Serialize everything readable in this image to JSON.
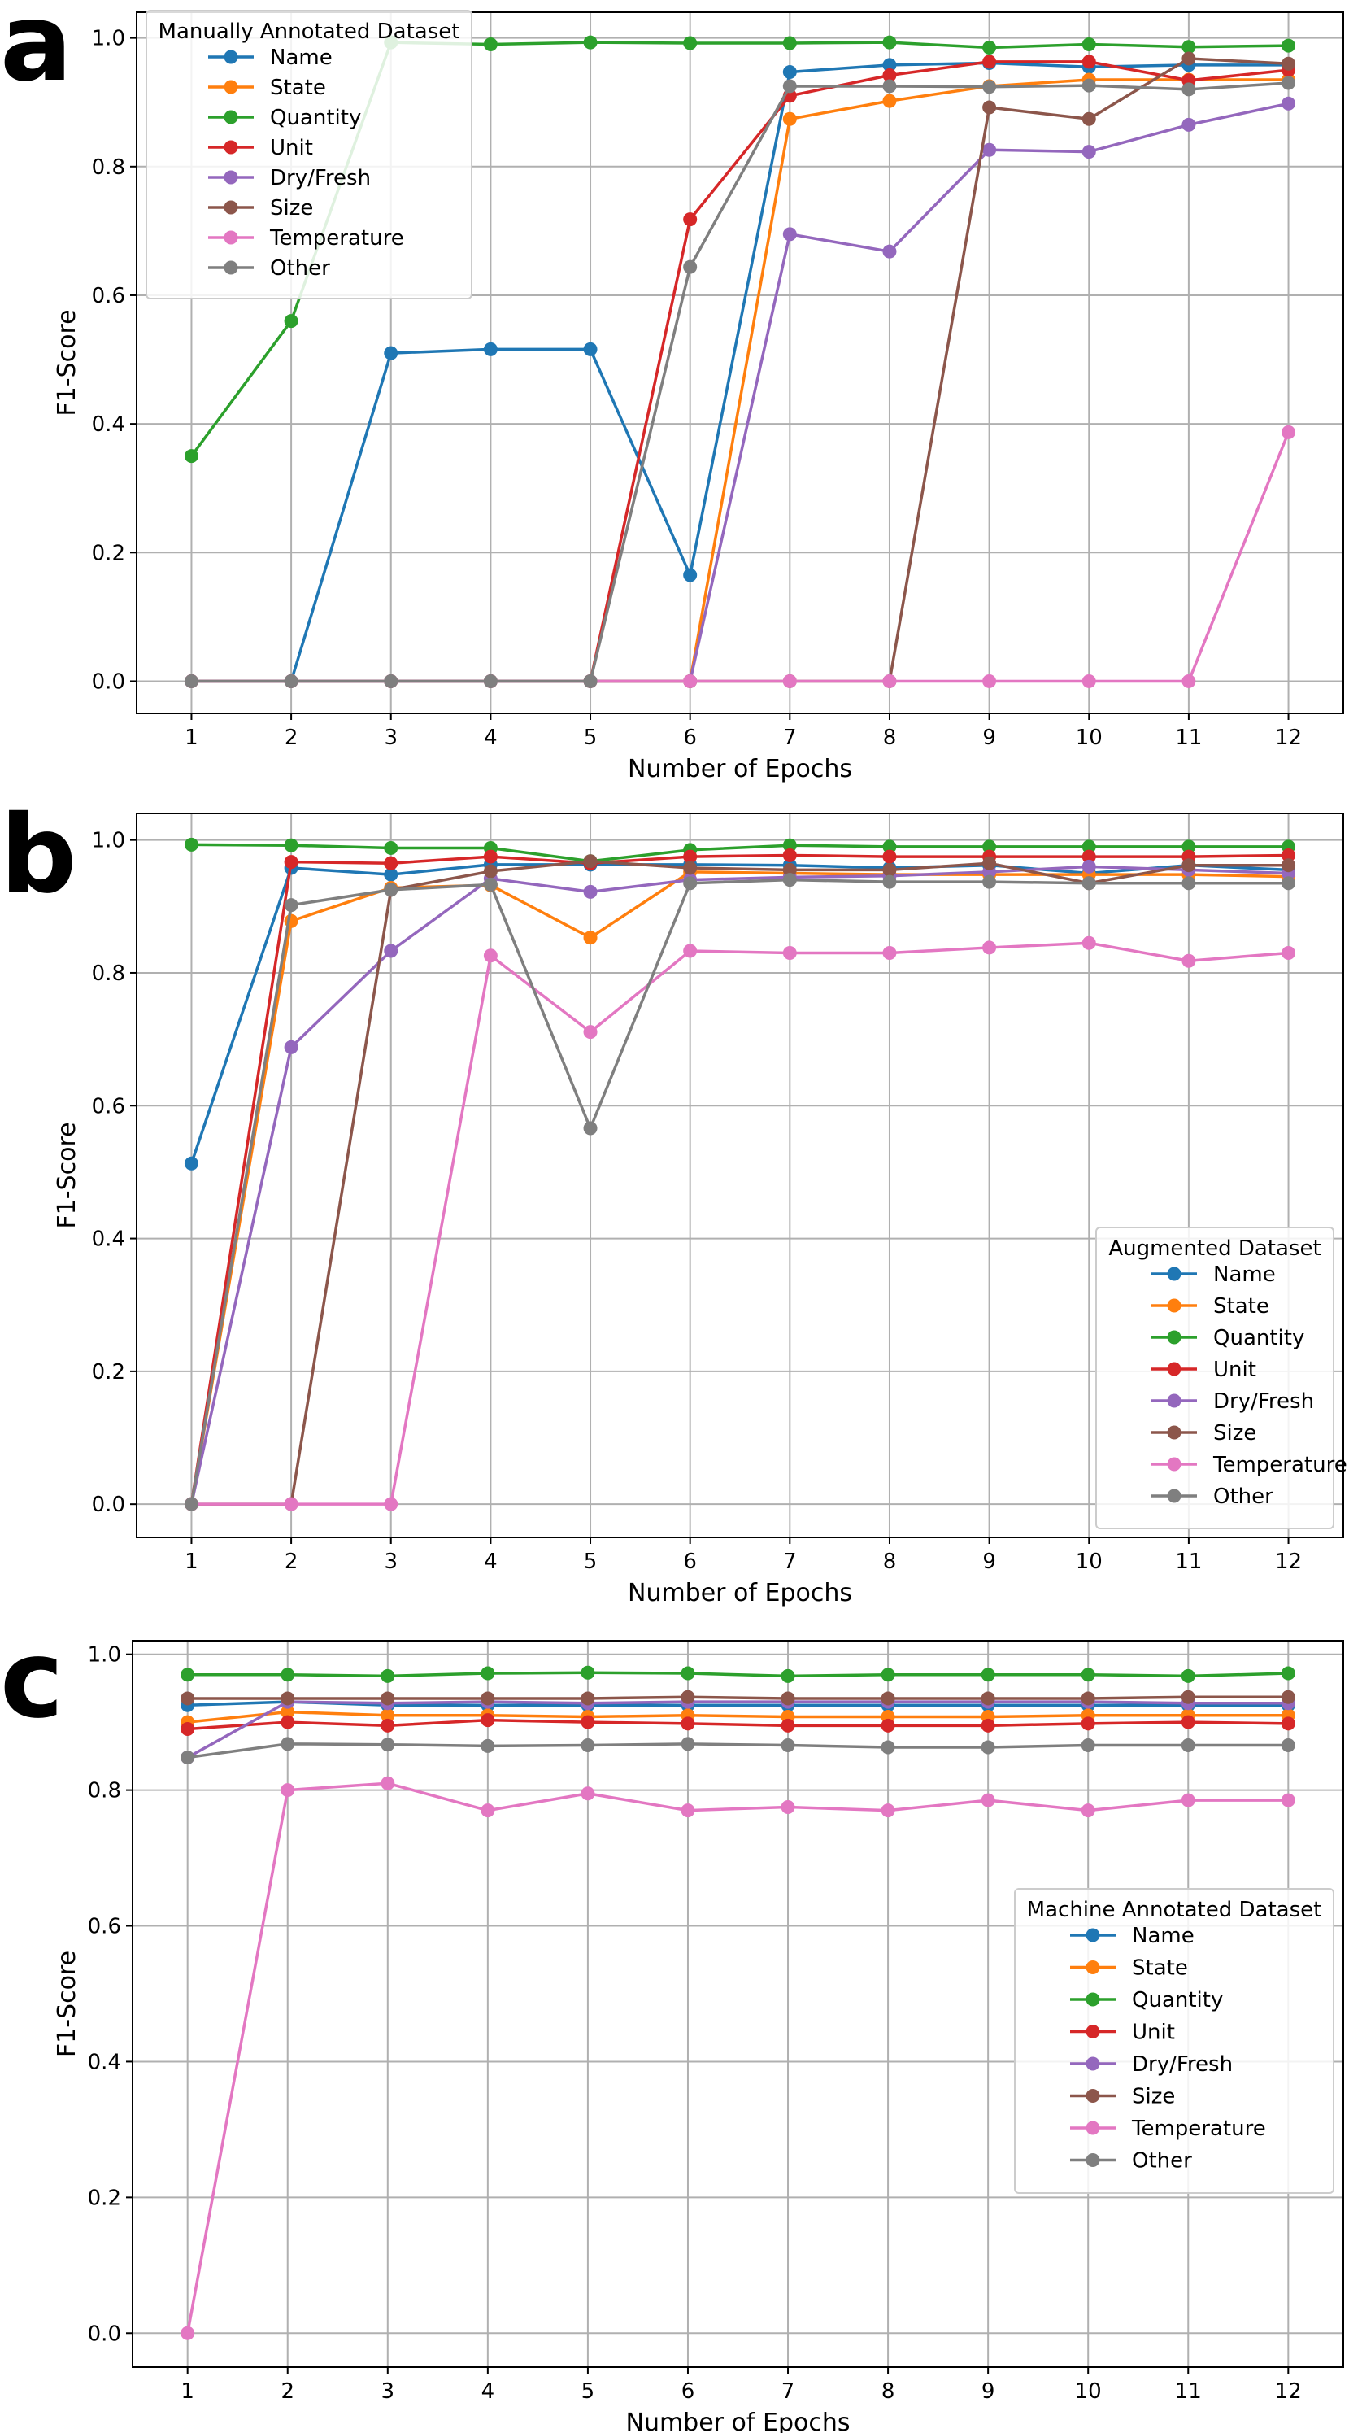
{
  "chart_data": [
    {
      "type": "line",
      "panel_label": "a",
      "xlabel": "Number of Epochs",
      "ylabel": "F1-Score",
      "x": [
        1,
        2,
        3,
        4,
        5,
        6,
        7,
        8,
        9,
        10,
        11,
        12
      ],
      "xlim": [
        0.45,
        12.55
      ],
      "ylim": [
        -0.05,
        1.04
      ],
      "yticks": [
        0.0,
        0.2,
        0.4,
        0.6,
        0.8,
        1.0
      ],
      "ytick_labels": [
        "0.0",
        "0.2",
        "0.4",
        "0.6",
        "0.8",
        "1.0"
      ],
      "grid": true,
      "legend_title": "Manually Annotated Dataset",
      "legend_placement": "upper left",
      "series": [
        {
          "name": "Name",
          "color": "#1f77b4",
          "values": [
            0.0,
            0.0,
            0.51,
            0.516,
            0.516,
            0.165,
            0.947,
            0.958,
            0.961,
            0.955,
            0.958,
            0.958
          ]
        },
        {
          "name": "State",
          "color": "#ff7f0e",
          "values": [
            0.0,
            0.0,
            0.0,
            0.0,
            0.0,
            0.0,
            0.874,
            0.902,
            0.925,
            0.935,
            0.935,
            0.935
          ]
        },
        {
          "name": "Quantity",
          "color": "#2ca02c",
          "values": [
            0.35,
            0.56,
            0.993,
            0.99,
            0.993,
            0.992,
            0.992,
            0.993,
            0.985,
            0.99,
            0.986,
            0.988
          ]
        },
        {
          "name": "Unit",
          "color": "#d62728",
          "values": [
            0.0,
            0.0,
            0.0,
            0.0,
            0.0,
            0.718,
            0.91,
            0.942,
            0.963,
            0.963,
            0.934,
            0.95
          ]
        },
        {
          "name": "Dry/Fresh",
          "color": "#9467bd",
          "values": [
            0.0,
            0.0,
            0.0,
            0.0,
            0.0,
            0.0,
            0.695,
            0.668,
            0.826,
            0.823,
            0.865,
            0.898
          ]
        },
        {
          "name": "Size",
          "color": "#8c564b",
          "values": [
            0.0,
            0.0,
            0.0,
            0.0,
            0.0,
            0.0,
            0.0,
            0.0,
            0.892,
            0.874,
            0.968,
            0.96
          ]
        },
        {
          "name": "Temperature",
          "color": "#e377c2",
          "values": [
            0.0,
            0.0,
            0.0,
            0.0,
            0.0,
            0.0,
            0.0,
            0.0,
            0.0,
            0.0,
            0.0,
            0.387
          ]
        },
        {
          "name": "Other",
          "color": "#7f7f7f",
          "values": [
            0.0,
            0.0,
            0.0,
            0.0,
            0.0,
            0.644,
            0.925,
            0.925,
            0.924,
            0.926,
            0.92,
            0.93
          ]
        }
      ]
    },
    {
      "type": "line",
      "panel_label": "b",
      "xlabel": "Number of Epochs",
      "ylabel": "F1-Score",
      "x": [
        1,
        2,
        3,
        4,
        5,
        6,
        7,
        8,
        9,
        10,
        11,
        12
      ],
      "xlim": [
        0.45,
        12.55
      ],
      "ylim": [
        -0.05,
        1.04
      ],
      "yticks": [
        0.0,
        0.2,
        0.4,
        0.6,
        0.8,
        1.0
      ],
      "ytick_labels": [
        "0.0",
        "0.2",
        "0.4",
        "0.6",
        "0.8",
        "1.0"
      ],
      "grid": true,
      "legend_title": "Augmented Dataset",
      "legend_placement": "lower right",
      "series": [
        {
          "name": "Name",
          "color": "#1f77b4",
          "values": [
            0.513,
            0.958,
            0.948,
            0.963,
            0.963,
            0.963,
            0.962,
            0.958,
            0.962,
            0.95,
            0.962,
            0.955
          ]
        },
        {
          "name": "State",
          "color": "#ff7f0e",
          "values": [
            0.0,
            0.878,
            0.928,
            0.932,
            0.853,
            0.952,
            0.95,
            0.948,
            0.948,
            0.948,
            0.948,
            0.945
          ]
        },
        {
          "name": "Quantity",
          "color": "#2ca02c",
          "values": [
            0.993,
            0.992,
            0.988,
            0.988,
            0.968,
            0.985,
            0.992,
            0.99,
            0.99,
            0.99,
            0.99,
            0.99
          ]
        },
        {
          "name": "Unit",
          "color": "#d62728",
          "values": [
            0.0,
            0.967,
            0.965,
            0.975,
            0.965,
            0.975,
            0.977,
            0.975,
            0.975,
            0.975,
            0.975,
            0.977
          ]
        },
        {
          "name": "Dry/Fresh",
          "color": "#9467bd",
          "values": [
            0.0,
            0.688,
            0.833,
            0.942,
            0.922,
            0.94,
            0.944,
            0.946,
            0.952,
            0.96,
            0.955,
            0.95
          ]
        },
        {
          "name": "Size",
          "color": "#8c564b",
          "values": [
            0.0,
            0.0,
            0.925,
            0.953,
            0.968,
            0.958,
            0.955,
            0.955,
            0.965,
            0.935,
            0.962,
            0.962
          ]
        },
        {
          "name": "Temperature",
          "color": "#e377c2",
          "values": [
            0.0,
            0.0,
            0.0,
            0.826,
            0.711,
            0.833,
            0.83,
            0.83,
            0.838,
            0.845,
            0.818,
            0.83
          ]
        },
        {
          "name": "Other",
          "color": "#7f7f7f",
          "values": [
            0.0,
            0.902,
            0.925,
            0.933,
            0.566,
            0.935,
            0.94,
            0.937,
            0.937,
            0.935,
            0.935,
            0.935
          ]
        }
      ]
    },
    {
      "type": "line",
      "panel_label": "c",
      "xlabel": "Number of Epochs",
      "ylabel": "F1-Score",
      "x": [
        1,
        2,
        3,
        4,
        5,
        6,
        7,
        8,
        9,
        10,
        11,
        12
      ],
      "xlim": [
        0.45,
        12.55
      ],
      "ylim": [
        -0.05,
        1.02
      ],
      "yticks": [
        0.0,
        0.2,
        0.4,
        0.6,
        0.8,
        1.0
      ],
      "ytick_labels": [
        "0.0",
        "0.2",
        "0.4",
        "0.6",
        "0.8",
        "1.0"
      ],
      "grid": true,
      "legend_title": "Machine Annotated Dataset",
      "legend_placement": "lower right",
      "series": [
        {
          "name": "Name",
          "color": "#1f77b4",
          "values": [
            0.925,
            0.93,
            0.925,
            0.925,
            0.925,
            0.925,
            0.925,
            0.925,
            0.925,
            0.925,
            0.925,
            0.925
          ]
        },
        {
          "name": "State",
          "color": "#ff7f0e",
          "values": [
            0.9,
            0.915,
            0.91,
            0.91,
            0.908,
            0.91,
            0.908,
            0.908,
            0.908,
            0.91,
            0.91,
            0.91
          ]
        },
        {
          "name": "Quantity",
          "color": "#2ca02c",
          "values": [
            0.97,
            0.97,
            0.968,
            0.972,
            0.973,
            0.972,
            0.968,
            0.97,
            0.97,
            0.97,
            0.968,
            0.972
          ]
        },
        {
          "name": "Unit",
          "color": "#d62728",
          "values": [
            0.89,
            0.9,
            0.895,
            0.903,
            0.9,
            0.898,
            0.895,
            0.895,
            0.895,
            0.898,
            0.9,
            0.898
          ]
        },
        {
          "name": "Dry/Fresh",
          "color": "#9467bd",
          "values": [
            0.848,
            0.93,
            0.928,
            0.93,
            0.928,
            0.93,
            0.93,
            0.93,
            0.93,
            0.93,
            0.928,
            0.928
          ]
        },
        {
          "name": "Size",
          "color": "#8c564b",
          "values": [
            0.935,
            0.935,
            0.935,
            0.935,
            0.935,
            0.937,
            0.935,
            0.935,
            0.935,
            0.935,
            0.937,
            0.937
          ]
        },
        {
          "name": "Temperature",
          "color": "#e377c2",
          "values": [
            0.0,
            0.8,
            0.81,
            0.77,
            0.795,
            0.77,
            0.775,
            0.77,
            0.785,
            0.77,
            0.785,
            0.785
          ]
        },
        {
          "name": "Other",
          "color": "#7f7f7f",
          "values": [
            0.848,
            0.868,
            0.867,
            0.865,
            0.866,
            0.868,
            0.866,
            0.863,
            0.863,
            0.866,
            0.866,
            0.866
          ]
        }
      ]
    }
  ]
}
